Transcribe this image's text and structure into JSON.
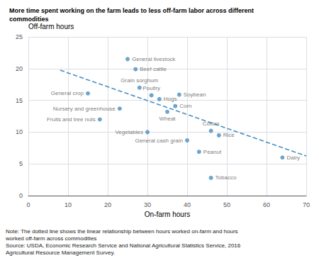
{
  "chart_data": {
    "type": "scatter",
    "title": "More time spent working on the farm leads to less off-farm labor across different\ncommodities",
    "x_label": "On-farm hours",
    "y_label": "Off-farm hours",
    "xlim": [
      0,
      70
    ],
    "ylim": [
      0,
      25
    ],
    "xticks": [
      0,
      10,
      20,
      30,
      40,
      50,
      60,
      70
    ],
    "yticks": [
      0,
      5,
      10,
      15,
      20,
      25
    ],
    "grid": true,
    "color": "#4a8fc0",
    "x": [
      25,
      27,
      28,
      15,
      31,
      38,
      33,
      23,
      37,
      35,
      18,
      30,
      40,
      46,
      48,
      43,
      64,
      46
    ],
    "values": [
      21.5,
      19.9,
      17.0,
      16.1,
      15.8,
      15.9,
      15.2,
      13.7,
      14.1,
      13.2,
      12.0,
      10.0,
      8.7,
      10.2,
      9.5,
      6.9,
      6.0,
      2.8
    ],
    "point_labels": [
      "General livestock",
      "Beef cattle",
      "Grain sorghum",
      "General crop",
      "Poultry",
      "Soybean",
      "Hogs",
      "Nursery and greenhouse",
      "Corn",
      "Wheat",
      "Fruits and tree nuts",
      "Vegetables",
      "General cash grain",
      "Cotton",
      "Rice",
      "Peanut",
      "Dairy",
      "Tobacco"
    ],
    "trendline": {
      "x": [
        8,
        70
      ],
      "values": [
        19.756,
        6.24
      ],
      "color": "#4a8fc0",
      "line_style": "dashed"
    },
    "annotations": [
      "Note: The dotted line shows the linear relationship between hours worked on-farm and hours",
      "worked off-farm across commodities",
      "Source: USDA, Economic Research Service and National Agricultural Statistics Service, 2016",
      "Agricultural Resource Management Survey."
    ]
  }
}
